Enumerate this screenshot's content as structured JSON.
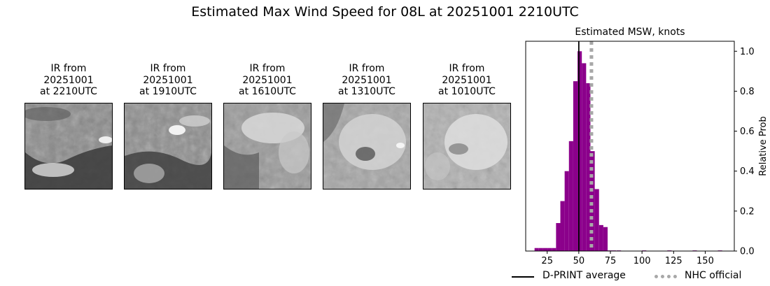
{
  "title": "Estimated Max Wind Speed for 08L at 20251001 2210UTC",
  "ir_panels": [
    {
      "line1": "IR from",
      "line2": "20251001",
      "line3": "at 2210UTC"
    },
    {
      "line1": "IR from",
      "line2": "20251001",
      "line3": "at 1910UTC"
    },
    {
      "line1": "IR from",
      "line2": "20251001",
      "line3": "at 1610UTC"
    },
    {
      "line1": "IR from",
      "line2": "20251001",
      "line3": "at 1310UTC"
    },
    {
      "line1": "IR from",
      "line2": "20251001",
      "line3": "at 1010UTC"
    }
  ],
  "chart_data": {
    "type": "bar",
    "title": "Estimated MSW, knots",
    "xlabel": "",
    "ylabel": "Relative Prob",
    "xlim": [
      8,
      173
    ],
    "ylim": [
      0,
      1.05
    ],
    "xticks": [
      25,
      50,
      75,
      100,
      125,
      150
    ],
    "yticks": [
      0.0,
      0.2,
      0.4,
      0.6,
      0.8,
      1.0
    ],
    "ytick_labels": [
      "0.0",
      "0.2",
      "0.4",
      "0.6",
      "0.8",
      "1.0"
    ],
    "y_axis_side": "right",
    "bin_width": 3.4,
    "bins": [
      {
        "x0": 15.0,
        "value": 0.015
      },
      {
        "x0": 18.4,
        "value": 0.015
      },
      {
        "x0": 21.8,
        "value": 0.015
      },
      {
        "x0": 25.2,
        "value": 0.015
      },
      {
        "x0": 28.6,
        "value": 0.015
      },
      {
        "x0": 32.0,
        "value": 0.14
      },
      {
        "x0": 35.4,
        "value": 0.25
      },
      {
        "x0": 38.8,
        "value": 0.4
      },
      {
        "x0": 42.2,
        "value": 0.55
      },
      {
        "x0": 45.6,
        "value": 0.85
      },
      {
        "x0": 49.0,
        "value": 1.0
      },
      {
        "x0": 52.4,
        "value": 0.94
      },
      {
        "x0": 55.8,
        "value": 0.84
      },
      {
        "x0": 59.2,
        "value": 0.5
      },
      {
        "x0": 62.6,
        "value": 0.31
      },
      {
        "x0": 66.0,
        "value": 0.13
      },
      {
        "x0": 69.4,
        "value": 0.12
      },
      {
        "x0": 72.8,
        "value": 0.003
      },
      {
        "x0": 76.2,
        "value": 0.003
      },
      {
        "x0": 80.0,
        "value": 0.003
      },
      {
        "x0": 100.0,
        "value": 0.003
      },
      {
        "x0": 120.0,
        "value": 0.003
      },
      {
        "x0": 140.0,
        "value": 0.003
      },
      {
        "x0": 160.0,
        "value": 0.003
      }
    ],
    "bar_color": "#8b008b",
    "dprint_average": 50,
    "nhc_official": 60,
    "legend": {
      "placement": "bottom",
      "dprint_label": "D-PRINT average",
      "nhc_label": "NHC official",
      "dprint_color": "#000000",
      "nhc_color": "#a8a8a8"
    }
  }
}
